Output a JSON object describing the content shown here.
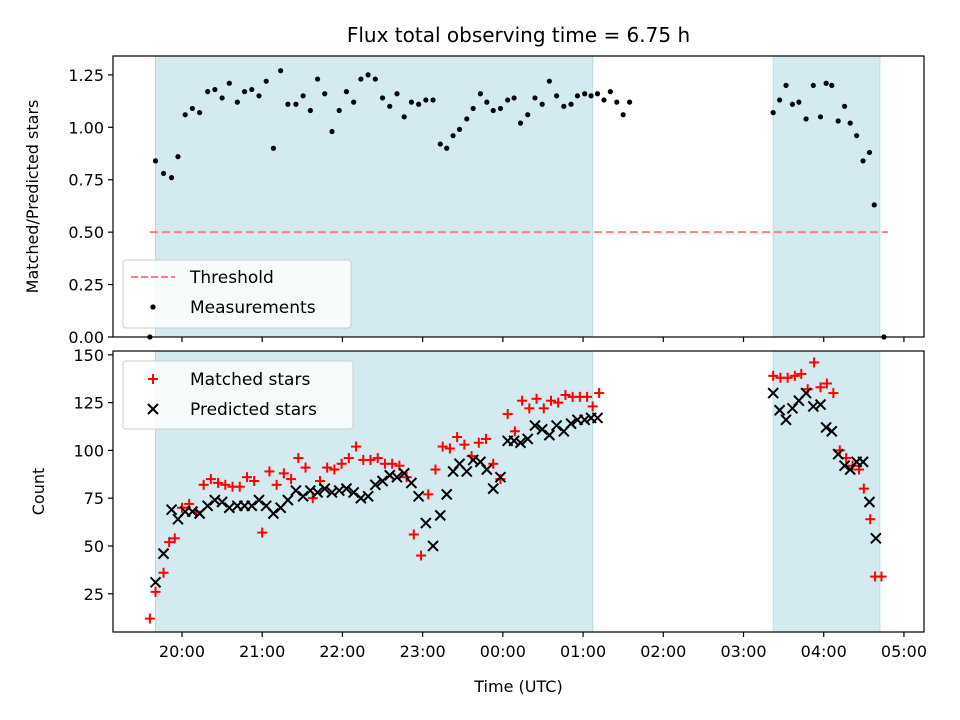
{
  "chart_data": [
    {
      "type": "scatter",
      "title": "Flux total observing time = 6.75 h",
      "xlabel": "",
      "ylabel": "Matched/Predicted stars",
      "x_unit": "hours since 00:00 UTC (negative = previous day)",
      "xlim": [
        -4.86,
        5.25
      ],
      "ylim": [
        0.0,
        1.34
      ],
      "yticks": [
        0.0,
        0.25,
        0.5,
        0.75,
        1.0,
        1.25
      ],
      "ytick_labels": [
        "0.00",
        "0.25",
        "0.50",
        "0.75",
        "1.00",
        "1.25"
      ],
      "shaded_intervals": [
        [
          -4.33,
          1.12
        ],
        [
          3.37,
          4.7
        ]
      ],
      "shade_color": "#d3eaf0",
      "legend": {
        "position": "lower-left",
        "entries": [
          "Threshold",
          "Measurements"
        ]
      },
      "series": [
        {
          "name": "Threshold",
          "style": "dashed-line",
          "color": "#ff7f7f",
          "x": [
            -4.4,
            4.8
          ],
          "y": [
            0.5,
            0.5
          ]
        },
        {
          "name": "Measurements",
          "style": "dot",
          "color": "#000000",
          "points": [
            [
              -4.4,
              0.0
            ],
            [
              -4.33,
              0.84
            ],
            [
              -4.23,
              0.78
            ],
            [
              -4.13,
              0.76
            ],
            [
              -4.05,
              0.86
            ],
            [
              -3.96,
              1.06
            ],
            [
              -3.87,
              1.09
            ],
            [
              -3.78,
              1.07
            ],
            [
              -3.68,
              1.17
            ],
            [
              -3.59,
              1.18
            ],
            [
              -3.5,
              1.14
            ],
            [
              -3.41,
              1.21
            ],
            [
              -3.31,
              1.12
            ],
            [
              -3.22,
              1.17
            ],
            [
              -3.13,
              1.18
            ],
            [
              -3.04,
              1.15
            ],
            [
              -2.95,
              1.22
            ],
            [
              -2.86,
              0.9
            ],
            [
              -2.77,
              1.27
            ],
            [
              -2.68,
              1.11
            ],
            [
              -2.58,
              1.11
            ],
            [
              -2.49,
              1.15
            ],
            [
              -2.4,
              1.08
            ],
            [
              -2.31,
              1.23
            ],
            [
              -2.22,
              1.16
            ],
            [
              -2.13,
              0.98
            ],
            [
              -2.04,
              1.08
            ],
            [
              -1.95,
              1.17
            ],
            [
              -1.86,
              1.12
            ],
            [
              -1.77,
              1.23
            ],
            [
              -1.68,
              1.25
            ],
            [
              -1.59,
              1.23
            ],
            [
              -1.5,
              1.14
            ],
            [
              -1.41,
              1.1
            ],
            [
              -1.32,
              1.16
            ],
            [
              -1.23,
              1.05
            ],
            [
              -1.14,
              1.12
            ],
            [
              -1.05,
              1.11
            ],
            [
              -0.96,
              1.13
            ],
            [
              -0.87,
              1.13
            ],
            [
              -0.78,
              0.92
            ],
            [
              -0.7,
              0.9
            ],
            [
              -0.62,
              0.96
            ],
            [
              -0.54,
              0.99
            ],
            [
              -0.45,
              1.04
            ],
            [
              -0.37,
              1.09
            ],
            [
              -0.28,
              1.16
            ],
            [
              -0.2,
              1.12
            ],
            [
              -0.12,
              1.08
            ],
            [
              -0.03,
              1.09
            ],
            [
              0.06,
              1.13
            ],
            [
              0.14,
              1.14
            ],
            [
              0.22,
              1.02
            ],
            [
              0.31,
              1.06
            ],
            [
              0.4,
              1.14
            ],
            [
              0.49,
              1.11
            ],
            [
              0.58,
              1.22
            ],
            [
              0.67,
              1.15
            ],
            [
              0.76,
              1.1
            ],
            [
              0.85,
              1.11
            ],
            [
              0.93,
              1.15
            ],
            [
              1.02,
              1.16
            ],
            [
              1.1,
              1.15
            ],
            [
              1.18,
              1.16
            ],
            [
              1.26,
              1.13
            ],
            [
              1.34,
              1.17
            ],
            [
              1.42,
              1.12
            ],
            [
              1.5,
              1.06
            ],
            [
              1.58,
              1.12
            ],
            [
              3.37,
              1.07
            ],
            [
              3.45,
              1.13
            ],
            [
              3.53,
              1.2
            ],
            [
              3.61,
              1.11
            ],
            [
              3.69,
              1.12
            ],
            [
              3.78,
              1.04
            ],
            [
              3.87,
              1.2
            ],
            [
              3.96,
              1.05
            ],
            [
              4.03,
              1.21
            ],
            [
              4.1,
              1.2
            ],
            [
              4.18,
              1.03
            ],
            [
              4.26,
              1.1
            ],
            [
              4.33,
              1.02
            ],
            [
              4.41,
              0.96
            ],
            [
              4.49,
              0.84
            ],
            [
              4.57,
              0.88
            ],
            [
              4.63,
              0.63
            ],
            [
              4.75,
              0.0
            ]
          ]
        }
      ]
    },
    {
      "type": "scatter",
      "title": "",
      "xlabel": "Time (UTC)",
      "ylabel": "Count",
      "x_unit": "hours since 00:00 UTC (negative = previous day)",
      "xlim": [
        -4.86,
        5.25
      ],
      "ylim": [
        5,
        152
      ],
      "yticks": [
        25,
        50,
        75,
        100,
        125,
        150
      ],
      "ytick_labels": [
        "25",
        "50",
        "75",
        "100",
        "125",
        "150"
      ],
      "xticks": [
        -4,
        -3,
        -2,
        -1,
        0,
        1,
        2,
        3,
        4,
        5
      ],
      "xtick_labels": [
        "20:00",
        "21:00",
        "22:00",
        "23:00",
        "00:00",
        "01:00",
        "02:00",
        "03:00",
        "04:00",
        "05:00"
      ],
      "shaded_intervals": [
        [
          -4.33,
          1.12
        ],
        [
          3.37,
          4.7
        ]
      ],
      "shade_color": "#d3eaf0",
      "legend": {
        "position": "upper-left",
        "entries": [
          "Matched stars",
          "Predicted stars"
        ]
      },
      "series": [
        {
          "name": "Matched stars",
          "style": "plus",
          "color": "#ff0000",
          "points": [
            [
              -4.4,
              12
            ],
            [
              -4.33,
              26
            ],
            [
              -4.23,
              36
            ],
            [
              -4.16,
              52
            ],
            [
              -4.09,
              54
            ],
            [
              -4.0,
              70
            ],
            [
              -3.91,
              72
            ],
            [
              -3.82,
              68
            ],
            [
              -3.73,
              82
            ],
            [
              -3.64,
              85
            ],
            [
              -3.55,
              83
            ],
            [
              -3.46,
              82
            ],
            [
              -3.37,
              81
            ],
            [
              -3.28,
              81
            ],
            [
              -3.19,
              86
            ],
            [
              -3.1,
              84
            ],
            [
              -3.0,
              57
            ],
            [
              -2.91,
              89
            ],
            [
              -2.82,
              82
            ],
            [
              -2.73,
              88
            ],
            [
              -2.64,
              85
            ],
            [
              -2.55,
              96
            ],
            [
              -2.46,
              91
            ],
            [
              -2.37,
              75
            ],
            [
              -2.28,
              84
            ],
            [
              -2.19,
              91
            ],
            [
              -2.1,
              90
            ],
            [
              -2.01,
              93
            ],
            [
              -1.92,
              96
            ],
            [
              -1.83,
              102
            ],
            [
              -1.74,
              95
            ],
            [
              -1.65,
              95
            ],
            [
              -1.56,
              96
            ],
            [
              -1.47,
              93
            ],
            [
              -1.38,
              93
            ],
            [
              -1.29,
              92
            ],
            [
              -1.2,
              86
            ],
            [
              -1.11,
              56
            ],
            [
              -1.02,
              45
            ],
            [
              -0.93,
              77
            ],
            [
              -0.84,
              90
            ],
            [
              -0.75,
              102
            ],
            [
              -0.66,
              101
            ],
            [
              -0.57,
              107
            ],
            [
              -0.48,
              103
            ],
            [
              -0.39,
              97
            ],
            [
              -0.3,
              104
            ],
            [
              -0.21,
              106
            ],
            [
              -0.12,
              93
            ],
            [
              -0.03,
              85
            ],
            [
              0.06,
              119
            ],
            [
              0.15,
              110
            ],
            [
              0.24,
              126
            ],
            [
              0.33,
              122
            ],
            [
              0.42,
              127
            ],
            [
              0.51,
              122
            ],
            [
              0.6,
              126
            ],
            [
              0.69,
              125
            ],
            [
              0.78,
              129
            ],
            [
              0.87,
              128
            ],
            [
              0.96,
              128
            ],
            [
              1.05,
              128
            ],
            [
              1.12,
              123
            ],
            [
              1.2,
              130
            ],
            [
              3.37,
              139
            ],
            [
              3.46,
              138
            ],
            [
              3.55,
              138
            ],
            [
              3.64,
              139
            ],
            [
              3.72,
              140
            ],
            [
              3.8,
              132
            ],
            [
              3.88,
              146
            ],
            [
              3.96,
              133
            ],
            [
              4.04,
              135
            ],
            [
              4.12,
              130
            ],
            [
              4.2,
              100
            ],
            [
              4.28,
              96
            ],
            [
              4.36,
              92
            ],
            [
              4.44,
              90
            ],
            [
              4.5,
              80
            ],
            [
              4.58,
              64
            ],
            [
              4.64,
              34
            ],
            [
              4.72,
              34
            ]
          ]
        },
        {
          "name": "Predicted stars",
          "style": "x",
          "color": "#000000",
          "points": [
            [
              -4.33,
              31
            ],
            [
              -4.23,
              46
            ],
            [
              -4.13,
              69
            ],
            [
              -4.05,
              64
            ],
            [
              -3.96,
              68
            ],
            [
              -3.87,
              68
            ],
            [
              -3.78,
              67
            ],
            [
              -3.68,
              71
            ],
            [
              -3.59,
              74
            ],
            [
              -3.5,
              73
            ],
            [
              -3.41,
              70
            ],
            [
              -3.31,
              71
            ],
            [
              -3.22,
              71
            ],
            [
              -3.13,
              71
            ],
            [
              -3.04,
              74
            ],
            [
              -2.95,
              71
            ],
            [
              -2.86,
              67
            ],
            [
              -2.77,
              70
            ],
            [
              -2.68,
              74
            ],
            [
              -2.58,
              79
            ],
            [
              -2.49,
              76
            ],
            [
              -2.4,
              79
            ],
            [
              -2.31,
              78
            ],
            [
              -2.22,
              80
            ],
            [
              -2.13,
              78
            ],
            [
              -2.04,
              79
            ],
            [
              -1.95,
              80
            ],
            [
              -1.86,
              78
            ],
            [
              -1.77,
              75
            ],
            [
              -1.68,
              76
            ],
            [
              -1.59,
              82
            ],
            [
              -1.5,
              84
            ],
            [
              -1.41,
              87
            ],
            [
              -1.32,
              86
            ],
            [
              -1.23,
              88
            ],
            [
              -1.14,
              83
            ],
            [
              -1.05,
              76
            ],
            [
              -0.96,
              62
            ],
            [
              -0.87,
              50
            ],
            [
              -0.78,
              66
            ],
            [
              -0.7,
              77
            ],
            [
              -0.62,
              89
            ],
            [
              -0.54,
              93
            ],
            [
              -0.45,
              89
            ],
            [
              -0.37,
              95
            ],
            [
              -0.28,
              94
            ],
            [
              -0.2,
              90
            ],
            [
              -0.12,
              80
            ],
            [
              -0.03,
              86
            ],
            [
              0.06,
              105
            ],
            [
              0.14,
              105
            ],
            [
              0.22,
              104
            ],
            [
              0.31,
              106
            ],
            [
              0.4,
              113
            ],
            [
              0.49,
              111
            ],
            [
              0.58,
              108
            ],
            [
              0.67,
              113
            ],
            [
              0.76,
              110
            ],
            [
              0.85,
              114
            ],
            [
              0.93,
              116
            ],
            [
              1.02,
              116
            ],
            [
              1.1,
              117
            ],
            [
              1.18,
              117
            ],
            [
              3.37,
              130
            ],
            [
              3.45,
              121
            ],
            [
              3.53,
              116
            ],
            [
              3.61,
              122
            ],
            [
              3.69,
              126
            ],
            [
              3.78,
              130
            ],
            [
              3.87,
              123
            ],
            [
              3.96,
              124
            ],
            [
              4.03,
              112
            ],
            [
              4.1,
              110
            ],
            [
              4.18,
              98
            ],
            [
              4.26,
              92
            ],
            [
              4.33,
              90
            ],
            [
              4.41,
              94
            ],
            [
              4.49,
              94
            ],
            [
              4.57,
              73
            ],
            [
              4.65,
              54
            ]
          ]
        }
      ]
    }
  ]
}
